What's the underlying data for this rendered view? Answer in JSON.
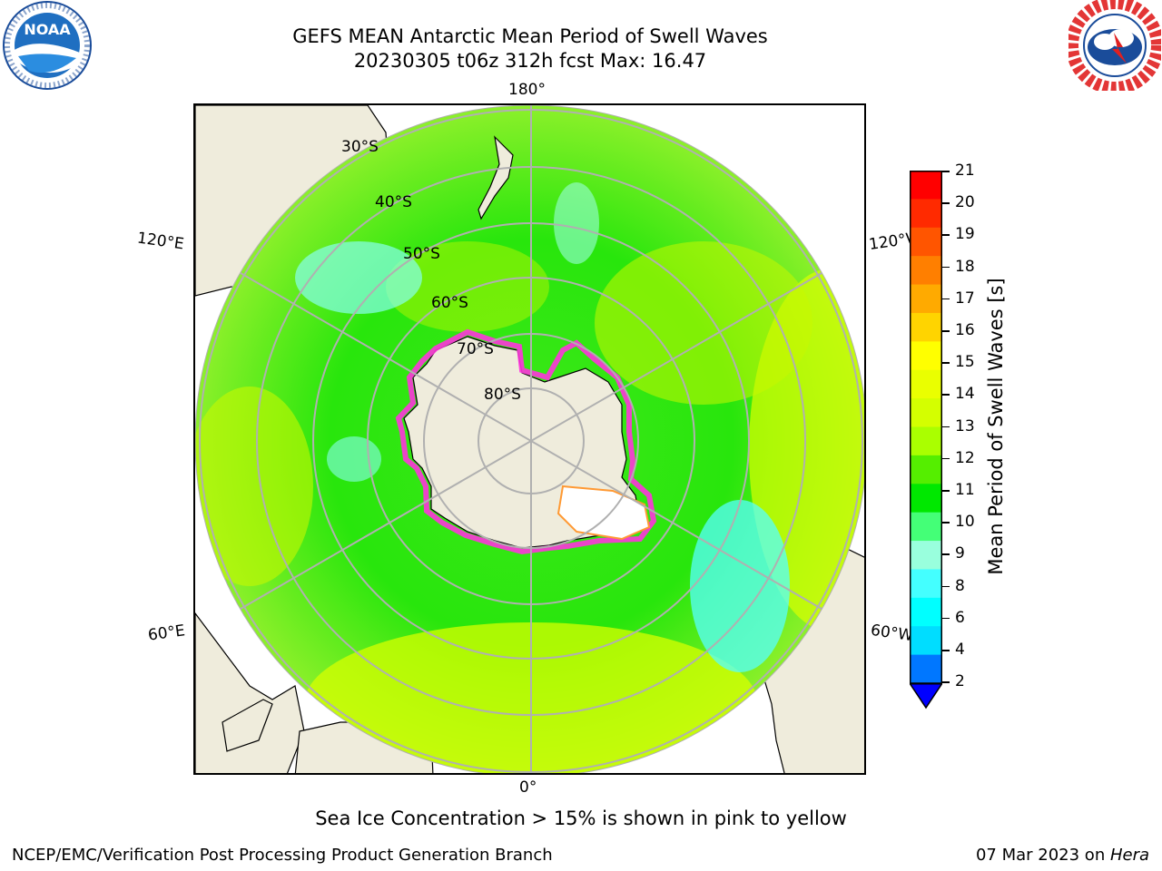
{
  "title": {
    "line1": "GEFS MEAN Antarctic Mean Period of Swell Waves",
    "line2": "20230305 t06z 312h fcst   Max: 16.47"
  },
  "map": {
    "projection": "south polar stereographic",
    "longitude_labels": {
      "top": "180°",
      "bottom": "0°",
      "upper_left": "120°E",
      "upper_right": "120°W",
      "lower_left": "60°E",
      "lower_right": "60°W"
    },
    "latitude_labels": [
      "30°S",
      "40°S",
      "50°S",
      "60°S",
      "70°S",
      "80°S"
    ],
    "colors": {
      "land": "#efecdc",
      "ocean_dominant": "#2ee40a",
      "sea_ice_edge": "#ff33dd",
      "graticule": "#b0b0b0"
    }
  },
  "colorbar": {
    "label": "Mean Period of Swell Waves [s]",
    "ticks": [
      "21",
      "20",
      "19",
      "18",
      "17",
      "16",
      "15",
      "14",
      "13",
      "12",
      "11",
      "10",
      "9",
      "8",
      "6",
      "4",
      "2"
    ],
    "colors_top_to_bottom": [
      "#ff0000",
      "#ff2a00",
      "#ff5500",
      "#ff7f00",
      "#ffaa00",
      "#ffd400",
      "#ffff00",
      "#eaff00",
      "#d4ff00",
      "#aaff00",
      "#55ee00",
      "#00e800",
      "#44ff77",
      "#99ffdd",
      "#44ffff",
      "#00ffff",
      "#00ddff",
      "#0077ff",
      "#0000ff"
    ]
  },
  "note": "Sea Ice Concentration > 15% is shown in pink to yellow",
  "footer": {
    "left": "NCEP/EMC/Verification Post Processing Product Generation Branch",
    "date": "07 Mar 2023 on ",
    "host": "Hera"
  },
  "logos": {
    "left": "NOAA",
    "right": "NATIONAL WEATHER SERVICE"
  }
}
